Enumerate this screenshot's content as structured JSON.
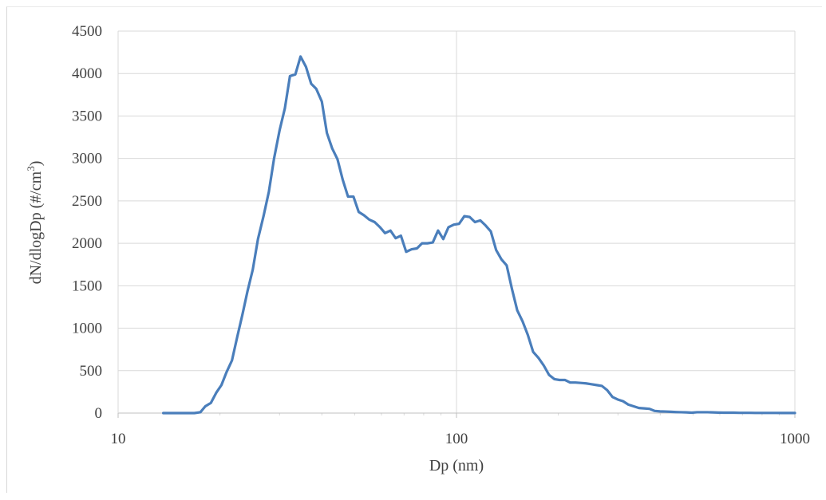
{
  "chart_data": {
    "type": "line",
    "title": "",
    "xlabel": "Dp (nm)",
    "ylabel_main": "dN/dlogDp (#/cm",
    "ylabel_sup": "3",
    "ylabel_close": ")",
    "xscale": "log",
    "xlim": [
      10,
      1000
    ],
    "ylim": [
      0,
      4500
    ],
    "xticks": [
      10,
      100,
      1000
    ],
    "xtick_labels": [
      "10",
      "100",
      "1000"
    ],
    "yticks": [
      0,
      500,
      1000,
      1500,
      2000,
      2500,
      3000,
      3500,
      4000,
      4500
    ],
    "ytick_labels": [
      "0",
      "500",
      "1000",
      "1500",
      "2000",
      "2500",
      "3000",
      "3500",
      "4000",
      "4500"
    ],
    "grid": true,
    "legend": "none",
    "series": [
      {
        "color": "#4a7ebb",
        "x": [
          13.6,
          14.1,
          14.6,
          15.1,
          15.7,
          16.3,
          16.8,
          17.5,
          18.1,
          18.8,
          19.5,
          20.2,
          20.9,
          21.7,
          22.5,
          23.3,
          24.1,
          25.0,
          25.9,
          26.9,
          27.9,
          28.9,
          30.0,
          31.1,
          32.2,
          33.4,
          34.6,
          35.9,
          37.2,
          38.5,
          40.0,
          41.4,
          42.9,
          44.5,
          46.1,
          47.8,
          49.6,
          51.4,
          53.3,
          55.2,
          57.3,
          59.4,
          61.5,
          63.8,
          66.1,
          68.5,
          71.0,
          73.7,
          76.4,
          79.1,
          82.0,
          85.1,
          88.2,
          91.4,
          94.7,
          98.2,
          101.8,
          105.5,
          109.4,
          113.4,
          117.6,
          121.9,
          126.3,
          131.0,
          135.8,
          140.7,
          145.9,
          151.2,
          156.8,
          162.5,
          168.5,
          174.7,
          181.1,
          187.7,
          194.6,
          201.7,
          209.1,
          216.7,
          224.7,
          232.9,
          241.4,
          250.3,
          259.5,
          269.0,
          278.8,
          289.0,
          299.6,
          310.6,
          322.0,
          333.8,
          346.0,
          358.7,
          371.8,
          385.4,
          399.5,
          414.2,
          429.4,
          445.1,
          461.4,
          478.3,
          495.8,
          514.0,
          532.8,
          552.3,
          572.5,
          593.5,
          615.3,
          637.8,
          661.2,
          685.4,
          710.5,
          736.5,
          763.5,
          791.5,
          820.5,
          850.5,
          881.7,
          914.0,
          947.5,
          982.2,
          1000
        ],
        "y": [
          0,
          0,
          0,
          0,
          0,
          0,
          0,
          10,
          80,
          120,
          240,
          330,
          480,
          620,
          900,
          1160,
          1430,
          1690,
          2050,
          2320,
          2610,
          3000,
          3330,
          3590,
          3970,
          3990,
          4200,
          4080,
          3880,
          3820,
          3670,
          3300,
          3120,
          2990,
          2750,
          2550,
          2550,
          2370,
          2330,
          2280,
          2250,
          2190,
          2120,
          2150,
          2060,
          2090,
          1900,
          1930,
          1940,
          2000,
          2000,
          2010,
          2150,
          2050,
          2190,
          2220,
          2230,
          2320,
          2310,
          2250,
          2270,
          2210,
          2140,
          1920,
          1810,
          1740,
          1460,
          1210,
          1080,
          920,
          720,
          650,
          560,
          450,
          400,
          390,
          390,
          360,
          360,
          355,
          350,
          340,
          330,
          320,
          270,
          190,
          160,
          140,
          100,
          80,
          60,
          55,
          50,
          25,
          20,
          18,
          15,
          12,
          10,
          8,
          5,
          10,
          10,
          10,
          8,
          6,
          5,
          5,
          5,
          3,
          3,
          3,
          2,
          2,
          2,
          2,
          2,
          1,
          1,
          1,
          1
        ]
      }
    ]
  }
}
